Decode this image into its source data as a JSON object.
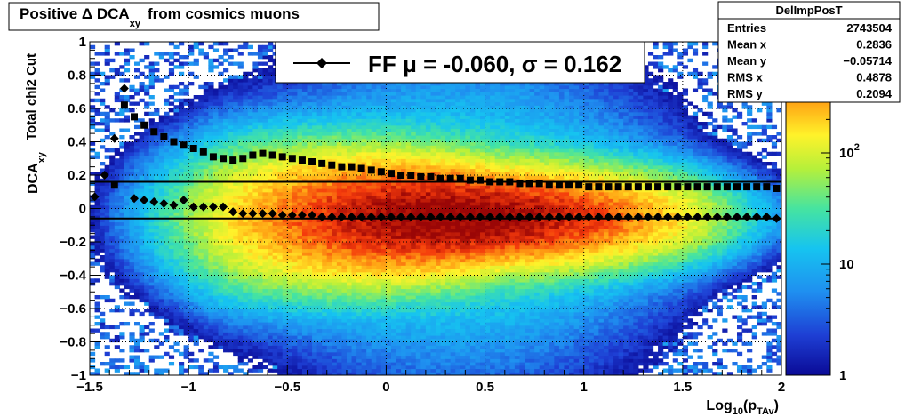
{
  "title": {
    "main": "Positive Δ DCA",
    "sub": "xy",
    "tail": "from cosmics muons"
  },
  "axes": {
    "xlabel": {
      "main": "Log",
      "sub1": "10",
      "mid": "(p",
      "sub2": "TAv",
      "tail": ")"
    },
    "ylabel": {
      "main": "DCA",
      "sub": "xy"
    },
    "ylabel2": "Total chi2 Cut"
  },
  "stats": {
    "title": "DelImpPosT",
    "rows": [
      {
        "label": "Entries",
        "value": "2743504"
      },
      {
        "label": "Mean x",
        "value": "0.2836"
      },
      {
        "label": "Mean y",
        "value": "−0.05714"
      },
      {
        "label": "RMS x",
        "value": "0.4878"
      },
      {
        "label": "RMS y",
        "value": "0.2094"
      }
    ]
  },
  "legend": {
    "text": "FF μ = -0.060, σ =   0.162"
  },
  "colors": {
    "marker": "#000000",
    "frame": "#000000"
  },
  "chart_data": {
    "type": "heatmap",
    "x_range": [
      -1.5,
      2
    ],
    "y_range": [
      -1,
      1
    ],
    "x_ticks": [
      {
        "v": -1.5,
        "label": "−1.5"
      },
      {
        "v": -1,
        "label": "−1"
      },
      {
        "v": -0.5,
        "label": "−0.5"
      },
      {
        "v": 0,
        "label": "0"
      },
      {
        "v": 0.5,
        "label": "0.5"
      },
      {
        "v": 1,
        "label": "1"
      },
      {
        "v": 1.5,
        "label": "1.5"
      },
      {
        "v": 2,
        "label": "2"
      }
    ],
    "y_ticks": [
      {
        "v": -1,
        "label": "−1"
      },
      {
        "v": -0.8,
        "label": "−0.8"
      },
      {
        "v": -0.6,
        "label": "−0.6"
      },
      {
        "v": -0.4,
        "label": "−0.4"
      },
      {
        "v": -0.2,
        "label": "−0.2"
      },
      {
        "v": 0,
        "label": "0"
      },
      {
        "v": 0.2,
        "label": "0.2"
      },
      {
        "v": 0.4,
        "label": "0.4"
      },
      {
        "v": 0.6,
        "label": "0.6"
      },
      {
        "v": 0.8,
        "label": "0.8"
      },
      {
        "v": 1,
        "label": "1"
      }
    ],
    "z_scale": "log",
    "z_range": [
      1,
      1000
    ],
    "z_ticks": [
      {
        "v": 1,
        "label": "1"
      },
      {
        "v": 10,
        "label": "10"
      },
      {
        "v": 100,
        "label": "10",
        "sup": "2"
      }
    ],
    "grid": true,
    "reference_lines": [
      {
        "name": "mean",
        "y": -0.06
      },
      {
        "name": "sigma",
        "y": 0.16
      }
    ],
    "series": [
      {
        "name": "mean_profile",
        "marker": "diamond",
        "x": [
          -1.475,
          -1.425,
          -1.375,
          -1.325,
          -1.275,
          -1.225,
          -1.175,
          -1.125,
          -1.075,
          -1.025,
          -0.975,
          -0.925,
          -0.875,
          -0.825,
          -0.775,
          -0.725,
          -0.675,
          -0.625,
          -0.575,
          -0.525,
          -0.475,
          -0.425,
          -0.375,
          -0.325,
          -0.275,
          -0.225,
          -0.175,
          -0.125,
          -0.075,
          -0.025,
          0.025,
          0.075,
          0.125,
          0.175,
          0.225,
          0.275,
          0.325,
          0.375,
          0.425,
          0.475,
          0.525,
          0.575,
          0.625,
          0.675,
          0.725,
          0.775,
          0.825,
          0.875,
          0.925,
          0.975,
          1.025,
          1.075,
          1.125,
          1.175,
          1.225,
          1.275,
          1.325,
          1.375,
          1.425,
          1.475,
          1.525,
          1.575,
          1.625,
          1.675,
          1.725,
          1.775,
          1.825,
          1.875,
          1.925,
          1.975
        ],
        "y": [
          0.07,
          0.2,
          0.42,
          0.72,
          0.06,
          0.05,
          0.04,
          0.03,
          0.02,
          0.05,
          0.01,
          0.01,
          0.01,
          0.01,
          -0.02,
          -0.03,
          -0.03,
          -0.03,
          -0.03,
          -0.04,
          -0.04,
          -0.04,
          -0.04,
          -0.05,
          -0.05,
          -0.05,
          -0.05,
          -0.05,
          -0.05,
          -0.05,
          -0.05,
          -0.05,
          -0.05,
          -0.05,
          -0.05,
          -0.05,
          -0.05,
          -0.05,
          -0.05,
          -0.05,
          -0.05,
          -0.05,
          -0.05,
          -0.05,
          -0.05,
          -0.05,
          -0.05,
          -0.05,
          -0.05,
          -0.05,
          -0.05,
          -0.05,
          -0.05,
          -0.05,
          -0.05,
          -0.05,
          -0.05,
          -0.05,
          -0.05,
          -0.05,
          -0.05,
          -0.05,
          -0.05,
          -0.05,
          -0.05,
          -0.05,
          -0.05,
          -0.05,
          -0.05,
          -0.06
        ]
      },
      {
        "name": "sigma_profile",
        "marker": "square",
        "x": [
          -1.375,
          -1.325,
          -1.275,
          -1.225,
          -1.175,
          -1.125,
          -1.075,
          -1.025,
          -0.975,
          -0.925,
          -0.875,
          -0.825,
          -0.775,
          -0.725,
          -0.675,
          -0.625,
          -0.575,
          -0.525,
          -0.475,
          -0.425,
          -0.375,
          -0.325,
          -0.275,
          -0.225,
          -0.175,
          -0.125,
          -0.075,
          -0.025,
          0.025,
          0.075,
          0.125,
          0.175,
          0.225,
          0.275,
          0.325,
          0.375,
          0.425,
          0.475,
          0.525,
          0.575,
          0.625,
          0.675,
          0.725,
          0.775,
          0.825,
          0.875,
          0.925,
          0.975,
          1.025,
          1.075,
          1.125,
          1.175,
          1.225,
          1.275,
          1.325,
          1.375,
          1.425,
          1.475,
          1.525,
          1.575,
          1.625,
          1.675,
          1.725,
          1.775,
          1.825,
          1.875,
          1.925,
          1.975
        ],
        "y": [
          0.14,
          0.62,
          0.55,
          0.5,
          0.46,
          0.43,
          0.4,
          0.38,
          0.36,
          0.34,
          0.31,
          0.3,
          0.29,
          0.3,
          0.32,
          0.33,
          0.32,
          0.31,
          0.3,
          0.29,
          0.28,
          0.27,
          0.26,
          0.25,
          0.25,
          0.24,
          0.23,
          0.22,
          0.21,
          0.2,
          0.2,
          0.19,
          0.19,
          0.18,
          0.18,
          0.18,
          0.17,
          0.17,
          0.16,
          0.16,
          0.16,
          0.15,
          0.15,
          0.15,
          0.14,
          0.14,
          0.14,
          0.14,
          0.13,
          0.13,
          0.13,
          0.13,
          0.13,
          0.13,
          0.13,
          0.13,
          0.13,
          0.13,
          0.13,
          0.13,
          0.13,
          0.13,
          0.13,
          0.13,
          0.13,
          0.13,
          0.13,
          0.12
        ]
      }
    ]
  }
}
